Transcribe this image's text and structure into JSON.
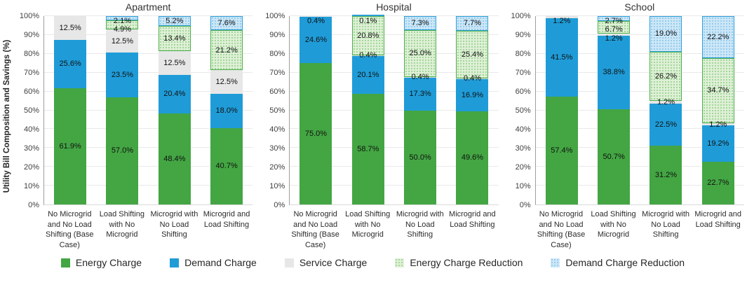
{
  "y_axis": {
    "title": "Utility Bill Composition and Savings (%)",
    "ticks": [
      "0%",
      "10%",
      "20%",
      "30%",
      "40%",
      "50%",
      "60%",
      "70%",
      "80%",
      "90%",
      "100%"
    ]
  },
  "colors": {
    "energy": "#43A643",
    "demand": "#1F9CD8",
    "service": "#E7E7E7",
    "energy_red_bg": "#DFF0D6",
    "energy_red_dot": "#8FCE88",
    "energy_red_border": "#4BAE4B",
    "demand_red_bg": "#CDE7F7",
    "demand_red_dot": "#85C3EA",
    "demand_red_border": "#2B9FD9"
  },
  "legend": [
    {
      "key": "energy",
      "label": "Energy Charge"
    },
    {
      "key": "demand",
      "label": "Demand Charge"
    },
    {
      "key": "service",
      "label": "Service Charge"
    },
    {
      "key": "energy_red",
      "label": "Energy Charge Reduction"
    },
    {
      "key": "demand_red",
      "label": "Demand Charge Reduction"
    }
  ],
  "chart_data": {
    "type": "bar",
    "stacked": true,
    "unit": "%",
    "ylim": [
      0,
      100
    ],
    "grid": true,
    "legend_position": "bottom",
    "ylabel": "Utility Bill Composition and Savings (%)",
    "categories": [
      "No Microgrid and No Load Shifting (Base Case)",
      "Load Shifting with No Microgrid",
      "Microgrid with No Load Shifting",
      "Microgrid and Load Shifting"
    ],
    "groups": [
      {
        "title": "Apartment",
        "series": [
          {
            "key": "energy",
            "name": "Energy Charge",
            "values": [
              61.9,
              57.0,
              48.4,
              40.7
            ]
          },
          {
            "key": "demand",
            "name": "Demand Charge",
            "values": [
              25.6,
              23.5,
              20.4,
              18.0
            ]
          },
          {
            "key": "service",
            "name": "Service Charge",
            "values": [
              12.5,
              12.5,
              12.5,
              12.5
            ]
          },
          {
            "key": "energy_red",
            "name": "Energy Charge Reduction",
            "values": [
              0,
              4.9,
              13.4,
              21.2
            ]
          },
          {
            "key": "demand_red",
            "name": "Demand Charge Reduction",
            "values": [
              0,
              2.1,
              5.2,
              7.6
            ]
          }
        ]
      },
      {
        "title": "Hospital",
        "series": [
          {
            "key": "energy",
            "name": "Energy Charge",
            "values": [
              75.0,
              58.7,
              50.0,
              49.6
            ]
          },
          {
            "key": "demand",
            "name": "Demand Charge",
            "values": [
              24.6,
              20.1,
              17.3,
              16.9
            ]
          },
          {
            "key": "service",
            "name": "Service Charge",
            "values": [
              0.4,
              0.4,
              0.4,
              0.4
            ]
          },
          {
            "key": "energy_red",
            "name": "Energy Charge Reduction",
            "values": [
              0,
              20.8,
              25.0,
              25.4
            ]
          },
          {
            "key": "demand_red",
            "name": "Demand Charge Reduction",
            "values": [
              0,
              0.1,
              7.3,
              7.7
            ]
          }
        ]
      },
      {
        "title": "School",
        "series": [
          {
            "key": "energy",
            "name": "Energy Charge",
            "values": [
              57.4,
              50.7,
              31.2,
              22.7
            ]
          },
          {
            "key": "demand",
            "name": "Demand Charge",
            "values": [
              41.5,
              38.8,
              22.5,
              19.2
            ]
          },
          {
            "key": "service",
            "name": "Service Charge",
            "values": [
              1.2,
              1.2,
              1.2,
              1.2
            ]
          },
          {
            "key": "energy_red",
            "name": "Energy Charge Reduction",
            "values": [
              0,
              6.7,
              26.2,
              34.7
            ]
          },
          {
            "key": "demand_red",
            "name": "Demand Charge Reduction",
            "values": [
              0,
              2.7,
              19.0,
              22.2
            ]
          }
        ]
      }
    ]
  }
}
